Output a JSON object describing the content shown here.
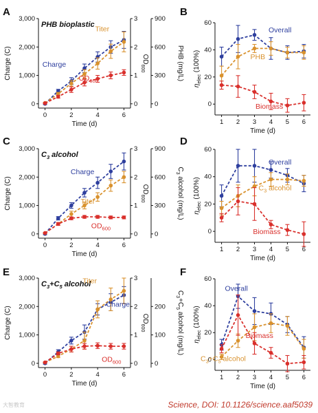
{
  "credit": "Science, DOI: 10.1126/science.aaf5039",
  "watermark": "大智教育",
  "colors": {
    "blue": "#2e3f9e",
    "orange": "#d9922e",
    "red": "#d9302c",
    "axis": "#111111"
  },
  "chart_data": [
    {
      "panel": "A",
      "type": "line",
      "title": "PHB bioplastic",
      "xlabel": "Time (d)",
      "ylabel": "Charge (C)",
      "ylabel2": "PHB (mg/L)",
      "ylabel3": "OD600",
      "xlim": [
        -0.5,
        6.5
      ],
      "xticks": [
        0,
        2,
        4,
        6
      ],
      "ylim": [
        -150,
        3000
      ],
      "yticks": [
        "0",
        "1,000",
        "2,000",
        "3,000"
      ],
      "y2lim": [
        -45,
        900
      ],
      "y2ticks": [
        0,
        300,
        600,
        900
      ],
      "y3lim": [
        -0.15,
        3
      ],
      "y3ticks": [
        0,
        1,
        2,
        3
      ],
      "series": [
        {
          "name": "Charge",
          "color": "blue",
          "axis": "y",
          "x": [
            0,
            1,
            2,
            3,
            4,
            5,
            6
          ],
          "y": [
            0,
            450,
            800,
            1250,
            1650,
            2000,
            2250
          ],
          "err": [
            30,
            60,
            120,
            150,
            180,
            220,
            300
          ]
        },
        {
          "name": "Titer",
          "color": "orange",
          "axis": "y3",
          "x": [
            0,
            1,
            2,
            3,
            4,
            5,
            6
          ],
          "y": [
            0.03,
            0.35,
            0.72,
            1.05,
            1.42,
            1.85,
            2.18
          ],
          "err": [
            0.02,
            0.05,
            0.1,
            0.15,
            0.2,
            0.25,
            0.35
          ]
        },
        {
          "name": "OD600",
          "color": "red",
          "axis": "y3",
          "x": [
            0,
            1,
            2,
            3,
            4,
            5,
            6
          ],
          "y": [
            0.02,
            0.25,
            0.5,
            0.75,
            0.88,
            1.0,
            1.1
          ],
          "err": [
            0.01,
            0.05,
            0.1,
            0.12,
            0.12,
            0.12,
            0.1
          ]
        }
      ],
      "annotations": [
        {
          "text": "Titer",
          "color": "orange",
          "at": [
            4.35,
            2.55
          ],
          "axis": "y3"
        },
        {
          "text": "Charge",
          "color": "blue",
          "at": [
            0.7,
            1.3
          ],
          "axis": "y3"
        },
        {
          "text": "OD",
          "sub": "600",
          "color": "red",
          "at": [
            3.3,
            0.82
          ],
          "axis": "y3"
        }
      ]
    },
    {
      "panel": "B",
      "type": "line",
      "xlabel": "Time (d)",
      "ylabel": "ηelec (100%)",
      "xlim": [
        0.6,
        6.4
      ],
      "xticks": [
        1,
        2,
        3,
        4,
        5,
        6
      ],
      "ylim": [
        -8,
        60
      ],
      "yticks": [
        0,
        20,
        40,
        60
      ],
      "series": [
        {
          "name": "Overall",
          "color": "blue",
          "x": [
            1,
            2,
            3,
            4,
            5,
            6
          ],
          "y": [
            35,
            48,
            51,
            41,
            38,
            39
          ],
          "err": [
            7,
            10,
            4,
            8,
            5,
            5
          ]
        },
        {
          "name": "PHB",
          "color": "orange",
          "x": [
            1,
            2,
            3,
            4,
            5,
            6
          ],
          "y": [
            21,
            35,
            41,
            41,
            38,
            38
          ],
          "err": [
            7,
            9,
            3,
            5,
            4,
            5
          ]
        },
        {
          "name": "Biomass",
          "color": "red",
          "x": [
            1,
            2,
            3,
            4,
            5,
            6
          ],
          "y": [
            14,
            13,
            9,
            2,
            -1,
            1
          ],
          "err": [
            3,
            8,
            5,
            6,
            5,
            6
          ]
        }
      ],
      "annotations": [
        {
          "text": "Overall",
          "color": "blue",
          "at": [
            4.55,
            53
          ]
        },
        {
          "text": "PHB",
          "color": "orange",
          "at": [
            3.2,
            33
          ]
        },
        {
          "text": "Biomass",
          "color": "red",
          "at": [
            3.9,
            -3.5
          ]
        }
      ]
    },
    {
      "panel": "C",
      "type": "line",
      "title": "C3 alcohol",
      "xlabel": "Time (d)",
      "ylabel": "Charge (C)",
      "ylabel2": "C3 alcohol (mg/L)",
      "ylabel3": "OD600",
      "xlim": [
        -0.5,
        6.5
      ],
      "xticks": [
        0,
        2,
        4,
        6
      ],
      "ylim": [
        -150,
        3000
      ],
      "yticks": [
        "0",
        "1,000",
        "2,000",
        "3,000"
      ],
      "y2lim": [
        -45,
        900
      ],
      "y2ticks": [
        0,
        300,
        600,
        900
      ],
      "y3lim": [
        -0.15,
        3
      ],
      "y3ticks": [
        0,
        1,
        2,
        3
      ],
      "series": [
        {
          "name": "Charge",
          "color": "blue",
          "axis": "y",
          "x": [
            0,
            1,
            2,
            3,
            4,
            5,
            6
          ],
          "y": [
            0,
            550,
            1000,
            1450,
            1800,
            2200,
            2550
          ],
          "err": [
            30,
            60,
            100,
            150,
            200,
            250,
            300
          ]
        },
        {
          "name": "Titer",
          "color": "orange",
          "axis": "y3",
          "x": [
            0,
            1,
            2,
            3,
            4,
            5,
            6
          ],
          "y": [
            0.03,
            0.35,
            0.7,
            1.0,
            1.3,
            1.7,
            2.0
          ],
          "err": [
            0.02,
            0.05,
            0.1,
            0.12,
            0.15,
            0.2,
            0.2
          ]
        },
        {
          "name": "OD600",
          "color": "red",
          "axis": "y3",
          "x": [
            0,
            1,
            2,
            3,
            4,
            5,
            6
          ],
          "y": [
            0.03,
            0.35,
            0.55,
            0.6,
            0.6,
            0.58,
            0.58
          ],
          "err": [
            0.01,
            0.05,
            0.05,
            0.05,
            0.05,
            0.05,
            0.05
          ]
        }
      ],
      "annotations": [
        {
          "text": "Charge",
          "color": "blue",
          "at": [
            2.85,
            2.1
          ],
          "axis": "y3"
        },
        {
          "text": "Titer",
          "color": "orange",
          "at": [
            3.25,
            1.06
          ],
          "axis": "y3"
        },
        {
          "text": "OD",
          "sub": "600",
          "color": "red",
          "at": [
            4.25,
            0.2
          ],
          "axis": "y3"
        }
      ]
    },
    {
      "panel": "D",
      "type": "line",
      "xlabel": "Time (d)",
      "ylabel": "ηelec (100%)",
      "xlim": [
        0.6,
        6.4
      ],
      "xticks": [
        1,
        2,
        3,
        4,
        5,
        6
      ],
      "ylim": [
        -8,
        60
      ],
      "yticks": [
        0,
        20,
        40,
        60
      ],
      "series": [
        {
          "name": "Overall",
          "color": "blue",
          "x": [
            1,
            2,
            3,
            4,
            5,
            6
          ],
          "y": [
            26,
            48,
            48,
            45,
            41,
            35
          ],
          "err": [
            8,
            12,
            12,
            6,
            5,
            6
          ]
        },
        {
          "name": "C3 alcohol",
          "color": "orange",
          "x": [
            1,
            2,
            3,
            4,
            5,
            6
          ],
          "y": [
            17,
            26,
            33,
            38,
            38,
            37
          ],
          "err": [
            5,
            8,
            7,
            5,
            4,
            4
          ]
        },
        {
          "name": "Biomass",
          "color": "red",
          "x": [
            1,
            2,
            3,
            4,
            5,
            6
          ],
          "y": [
            10,
            22,
            20,
            5,
            1,
            -2
          ],
          "err": [
            3,
            10,
            12,
            3,
            4,
            9
          ]
        }
      ],
      "annotations": [
        {
          "text": "Overall",
          "color": "blue",
          "at": [
            4.55,
            49
          ]
        },
        {
          "text": "C",
          "sub": "3",
          "tail": " alcohol",
          "color": "orange",
          "at": [
            4.25,
            30
          ]
        },
        {
          "text": "Biomass",
          "color": "red",
          "at": [
            3.75,
            -2
          ]
        }
      ]
    },
    {
      "panel": "E",
      "type": "line",
      "title": "C3+C5 alcohol",
      "xlabel": "Time (d)",
      "ylabel": "Charge (C)",
      "ylabel2": "C3+C5 alcohol (mg/L)",
      "ylabel3": "OD600",
      "xlim": [
        -0.5,
        6.5
      ],
      "xticks": [
        0,
        2,
        4,
        6
      ],
      "ylim": [
        -150,
        3000
      ],
      "yticks": [
        "0",
        "1,000",
        "2,000",
        "3,000"
      ],
      "y2lim": [
        -15,
        300
      ],
      "y2ticks": [
        0,
        100,
        200
      ],
      "y3lim": [
        -0.15,
        3
      ],
      "y3ticks": [
        0,
        1,
        2,
        3
      ],
      "series": [
        {
          "name": "Charge",
          "color": "blue",
          "axis": "y",
          "x": [
            0,
            1,
            2,
            3,
            4,
            5,
            6
          ],
          "y": [
            0,
            400,
            800,
            1100,
            1900,
            2150,
            2400
          ],
          "err": [
            30,
            80,
            120,
            250,
            200,
            300,
            300
          ]
        },
        {
          "name": "Titer",
          "color": "orange",
          "axis": "y3",
          "x": [
            0,
            1,
            2,
            3,
            4,
            5,
            6
          ],
          "y": [
            0.03,
            0.25,
            0.5,
            0.8,
            1.9,
            2.25,
            2.55
          ],
          "err": [
            0.02,
            0.05,
            0.1,
            0.3,
            0.3,
            0.4,
            0.45
          ]
        },
        {
          "name": "OD600",
          "color": "red",
          "axis": "y3",
          "x": [
            0,
            1,
            2,
            3,
            4,
            5,
            6
          ],
          "y": [
            0.03,
            0.35,
            0.5,
            0.6,
            0.62,
            0.6,
            0.6
          ],
          "err": [
            0.01,
            0.05,
            0.1,
            0.1,
            0.1,
            0.1,
            0.1
          ]
        }
      ],
      "annotations": [
        {
          "text": "Titer",
          "color": "orange",
          "at": [
            3.4,
            2.82
          ],
          "axis": "y3"
        },
        {
          "text": "Charge",
          "color": "blue",
          "at": [
            5.55,
            2.0
          ],
          "axis": "y3"
        },
        {
          "text": "OD",
          "sub": "600",
          "color": "red",
          "at": [
            5.05,
            0.05
          ],
          "axis": "y3"
        }
      ]
    },
    {
      "panel": "F",
      "type": "line",
      "xlabel": "Time (d)",
      "ylabel": "ηelec (100%)",
      "xlim": [
        0.6,
        6.4
      ],
      "xticks": [
        1,
        2,
        3,
        4,
        5,
        6
      ],
      "ylim": [
        -8,
        60
      ],
      "yticks": [
        0,
        20,
        40,
        60
      ],
      "series": [
        {
          "name": "Overall",
          "color": "blue",
          "x": [
            1,
            2,
            3,
            4,
            5,
            6
          ],
          "y": [
            11,
            47,
            36,
            34,
            26,
            9
          ],
          "err": [
            4,
            9,
            10,
            8,
            6,
            8
          ]
        },
        {
          "name": "C3+C5 alcohol",
          "color": "orange",
          "x": [
            1,
            2,
            3,
            4,
            5,
            6
          ],
          "y": [
            2,
            14,
            24,
            27,
            25,
            8
          ],
          "err": [
            2,
            5,
            10,
            7,
            7,
            7
          ]
        },
        {
          "name": "Biomass",
          "color": "red",
          "x": [
            1,
            2,
            3,
            4,
            5,
            6
          ],
          "y": [
            8,
            33,
            12,
            5,
            -3,
            -2
          ],
          "err": [
            3,
            15,
            8,
            4,
            6,
            5
          ]
        }
      ],
      "annotations": [
        {
          "text": "Overall",
          "color": "blue",
          "at": [
            1.9,
            51
          ]
        },
        {
          "text": "Biomass",
          "color": "red",
          "at": [
            3.3,
            16
          ]
        },
        {
          "text": "C",
          "sub": "3",
          "tail": "+C",
          "sub2": "5",
          "tail2": " alcohol",
          "color": "orange",
          "at": [
            1.1,
            -1
          ]
        }
      ]
    }
  ]
}
